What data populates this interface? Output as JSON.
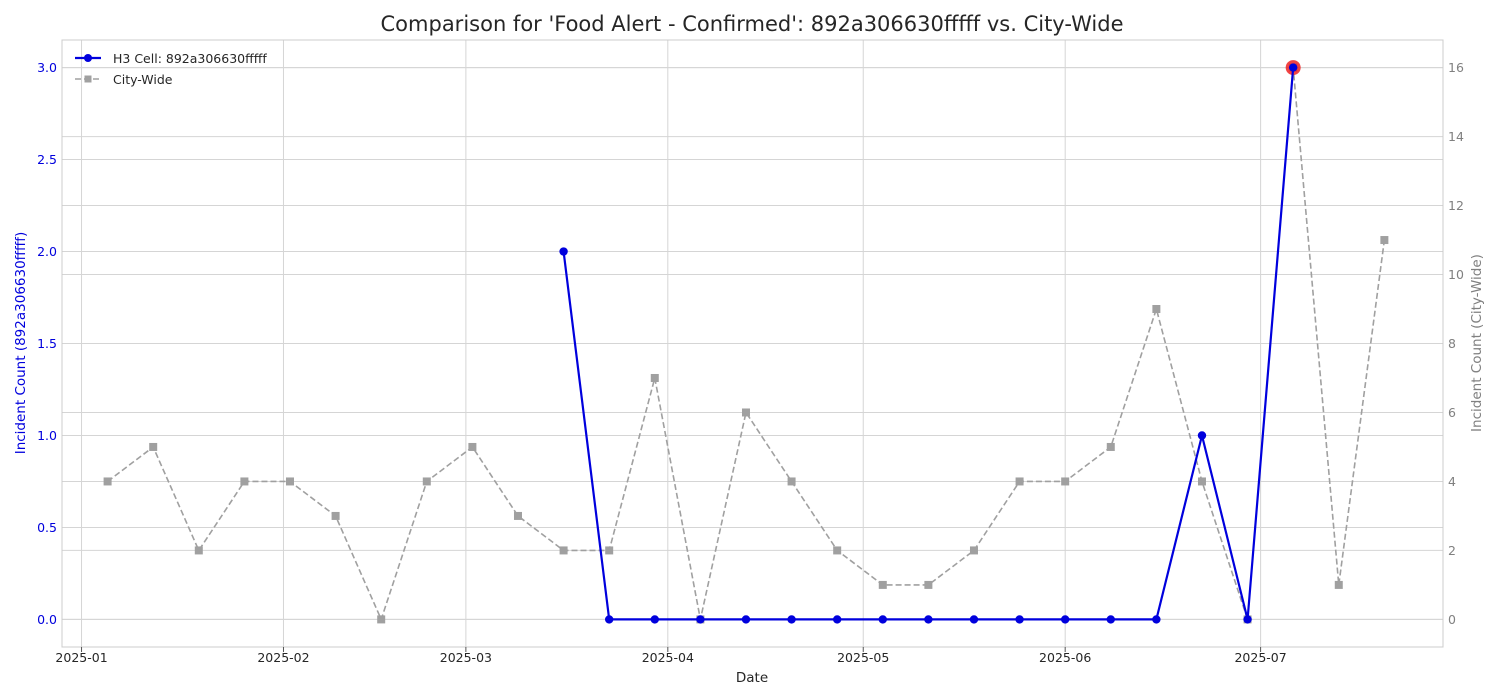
{
  "chart_data": {
    "type": "line",
    "title": "Comparison for 'Food Alert - Confirmed': 892a306630fffff vs. City-Wide",
    "xlabel": "Date",
    "ylabel_left": "Incident Count (892a306630fffff)",
    "ylabel_right": "Incident Count (City-Wide)",
    "x_ticks": [
      "2025-01",
      "2025-02",
      "2025-03",
      "2025-04",
      "2025-05",
      "2025-06",
      "2025-07"
    ],
    "xlim": [
      "2024-12-29",
      "2025-07-29"
    ],
    "ylim_left": [
      -0.15,
      3.15
    ],
    "ylim_right": [
      -0.8,
      16.8
    ],
    "y_ticks_left": [
      "0.0",
      "0.5",
      "1.0",
      "1.5",
      "2.0",
      "2.5",
      "3.0"
    ],
    "y_ticks_right": [
      "0",
      "2",
      "4",
      "6",
      "8",
      "10",
      "12",
      "14",
      "16"
    ],
    "grid": true,
    "legend_position": "top-left",
    "series": [
      {
        "name": "H3 Cell: 892a306630fffff",
        "axis": "left",
        "color": "#0000dd",
        "marker": "circle",
        "line_style": "solid",
        "dates": [
          "2025-03-16",
          "2025-03-23",
          "2025-03-30",
          "2025-04-06",
          "2025-04-13",
          "2025-04-20",
          "2025-04-27",
          "2025-05-04",
          "2025-05-11",
          "2025-05-18",
          "2025-05-25",
          "2025-06-01",
          "2025-06-08",
          "2025-06-15",
          "2025-06-22",
          "2025-06-29",
          "2025-07-06"
        ],
        "values": [
          2,
          0,
          0,
          0,
          0,
          0,
          0,
          0,
          0,
          0,
          0,
          0,
          0,
          0,
          1,
          0,
          3
        ]
      },
      {
        "name": "City-Wide",
        "axis": "right",
        "color": "#a0a0a0",
        "marker": "square",
        "line_style": "dashed",
        "dates": [
          "2025-01-05",
          "2025-01-12",
          "2025-01-19",
          "2025-01-26",
          "2025-02-02",
          "2025-02-09",
          "2025-02-16",
          "2025-02-23",
          "2025-03-02",
          "2025-03-09",
          "2025-03-16",
          "2025-03-23",
          "2025-03-30",
          "2025-04-06",
          "2025-04-13",
          "2025-04-20",
          "2025-04-27",
          "2025-05-04",
          "2025-05-11",
          "2025-05-18",
          "2025-05-25",
          "2025-06-01",
          "2025-06-08",
          "2025-06-15",
          "2025-06-22",
          "2025-06-29",
          "2025-07-06",
          "2025-07-13",
          "2025-07-20"
        ],
        "values": [
          4,
          5,
          2,
          4,
          4,
          3,
          0,
          4,
          5,
          3,
          2,
          2,
          7,
          0,
          6,
          4,
          2,
          1,
          1,
          2,
          4,
          4,
          5,
          9,
          4,
          0,
          16,
          1,
          11
        ]
      }
    ],
    "highlight": {
      "date": "2025-07-06",
      "value": 3,
      "color": "#ee2222"
    },
    "left_axis_color": "#0000dd",
    "right_axis_color": "#808080"
  }
}
